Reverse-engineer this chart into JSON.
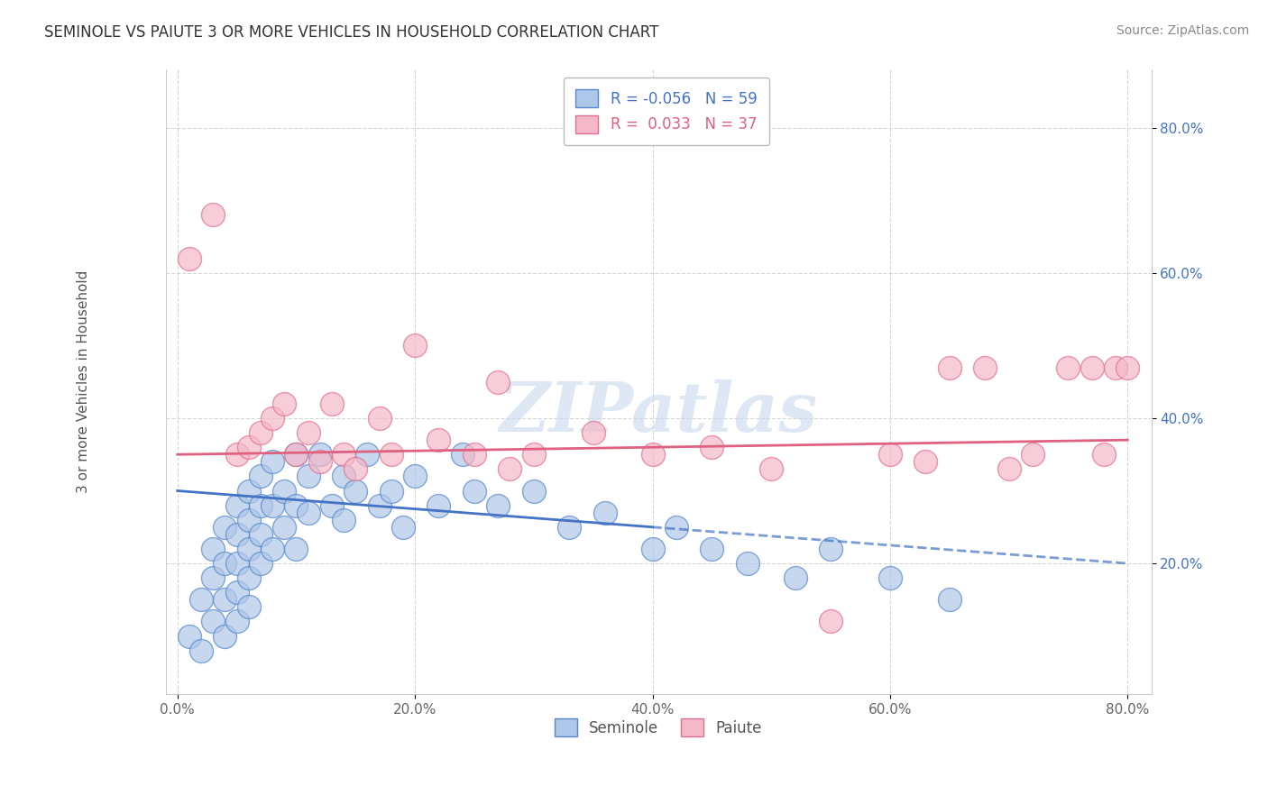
{
  "title": "SEMINOLE VS PAIUTE 3 OR MORE VEHICLES IN HOUSEHOLD CORRELATION CHART",
  "source": "Source: ZipAtlas.com",
  "ylabel": "3 or more Vehicles in Household",
  "x_tick_values": [
    0,
    20,
    40,
    60,
    80
  ],
  "y_tick_values": [
    20,
    40,
    60,
    80
  ],
  "seminole_color": "#aec6e8",
  "paiute_color": "#f4b8c8",
  "seminole_edge": "#5588cc",
  "paiute_edge": "#e07090",
  "seminole_line_color": "#4472c4",
  "paiute_line_color": "#e06080",
  "legend_r_seminole": "R = -0.056",
  "legend_n_seminole": "N = 59",
  "legend_r_paiute": "R =  0.033",
  "legend_n_paiute": "N = 37",
  "watermark": "ZIPatlas",
  "background": "#ffffff",
  "grid_color": "#cccccc",
  "seminole_x": [
    1,
    2,
    2,
    3,
    3,
    3,
    4,
    4,
    4,
    4,
    5,
    5,
    5,
    5,
    5,
    6,
    6,
    6,
    6,
    6,
    7,
    7,
    7,
    7,
    8,
    8,
    8,
    9,
    9,
    10,
    10,
    10,
    11,
    11,
    12,
    13,
    14,
    14,
    15,
    16,
    17,
    18,
    19,
    20,
    22,
    24,
    25,
    27,
    30,
    33,
    36,
    40,
    42,
    45,
    48,
    52,
    55,
    60,
    65
  ],
  "seminole_y": [
    10,
    15,
    8,
    22,
    18,
    12,
    25,
    20,
    15,
    10,
    28,
    24,
    20,
    16,
    12,
    30,
    26,
    22,
    18,
    14,
    32,
    28,
    24,
    20,
    34,
    28,
    22,
    30,
    25,
    35,
    28,
    22,
    32,
    27,
    35,
    28,
    32,
    26,
    30,
    35,
    28,
    30,
    25,
    32,
    28,
    35,
    30,
    28,
    30,
    25,
    27,
    22,
    25,
    22,
    20,
    18,
    22,
    18,
    15
  ],
  "paiute_x": [
    1,
    3,
    5,
    6,
    7,
    8,
    9,
    10,
    11,
    12,
    13,
    14,
    15,
    17,
    18,
    20,
    22,
    25,
    27,
    28,
    30,
    35,
    40,
    45,
    50,
    55,
    60,
    63,
    65,
    68,
    70,
    72,
    75,
    77,
    78,
    79,
    80
  ],
  "paiute_y": [
    62,
    68,
    35,
    36,
    38,
    40,
    42,
    35,
    38,
    34,
    42,
    35,
    33,
    40,
    35,
    50,
    37,
    35,
    45,
    33,
    35,
    38,
    35,
    36,
    33,
    12,
    35,
    34,
    47,
    47,
    33,
    35,
    47,
    47,
    35,
    47,
    47
  ]
}
